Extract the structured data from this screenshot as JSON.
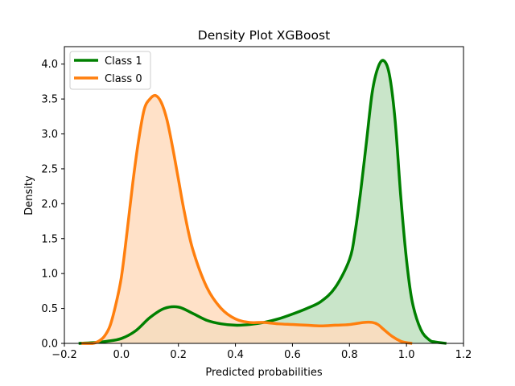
{
  "chart_data": {
    "type": "area",
    "title": "Density Plot XGBoost",
    "xlabel": "Predicted probabilities",
    "ylabel": "Density",
    "xlim": [
      -0.2,
      1.2
    ],
    "ylim": [
      0,
      4.25
    ],
    "xticks": [
      -0.2,
      0.0,
      0.2,
      0.4,
      0.6,
      0.8,
      1.0,
      1.2
    ],
    "xtick_labels": [
      "−0.2",
      "0.0",
      "0.2",
      "0.4",
      "0.6",
      "0.8",
      "1.0",
      "1.2"
    ],
    "yticks": [
      0.0,
      0.5,
      1.0,
      1.5,
      2.0,
      2.5,
      3.0,
      3.5,
      4.0
    ],
    "ytick_labels": [
      "0.0",
      "0.5",
      "1.0",
      "1.5",
      "2.0",
      "2.5",
      "3.0",
      "3.5",
      "4.0"
    ],
    "grid": false,
    "legend_position": "top-left",
    "series": [
      {
        "name": "Class 1",
        "color": "#008000",
        "fill": "#bfe0bf",
        "x": [
          -0.15,
          -0.1,
          -0.05,
          0.0,
          0.05,
          0.1,
          0.15,
          0.2,
          0.25,
          0.3,
          0.35,
          0.4,
          0.45,
          0.5,
          0.55,
          0.6,
          0.65,
          0.7,
          0.75,
          0.8,
          0.82,
          0.84,
          0.86,
          0.88,
          0.9,
          0.92,
          0.94,
          0.96,
          0.98,
          1.0,
          1.02,
          1.05,
          1.08,
          1.1,
          1.14
        ],
        "y": [
          0.0,
          0.01,
          0.03,
          0.07,
          0.18,
          0.37,
          0.5,
          0.52,
          0.43,
          0.33,
          0.28,
          0.26,
          0.27,
          0.3,
          0.35,
          0.42,
          0.5,
          0.6,
          0.8,
          1.2,
          1.6,
          2.2,
          2.9,
          3.6,
          3.95,
          4.05,
          3.85,
          3.2,
          2.1,
          1.2,
          0.6,
          0.2,
          0.05,
          0.02,
          0.0
        ]
      },
      {
        "name": "Class 0",
        "color": "#ff7f0e",
        "fill": "#ffdcbe",
        "x": [
          -0.14,
          -0.1,
          -0.08,
          -0.06,
          -0.04,
          -0.02,
          0.0,
          0.02,
          0.04,
          0.06,
          0.08,
          0.1,
          0.12,
          0.14,
          0.16,
          0.18,
          0.2,
          0.22,
          0.25,
          0.3,
          0.35,
          0.4,
          0.45,
          0.5,
          0.55,
          0.6,
          0.65,
          0.7,
          0.75,
          0.8,
          0.85,
          0.88,
          0.9,
          0.92,
          0.95,
          0.98,
          1.0,
          1.02
        ],
        "y": [
          0.0,
          0.0,
          0.03,
          0.1,
          0.25,
          0.55,
          0.95,
          1.6,
          2.3,
          2.9,
          3.35,
          3.5,
          3.55,
          3.45,
          3.2,
          2.8,
          2.35,
          1.9,
          1.35,
          0.8,
          0.5,
          0.35,
          0.3,
          0.3,
          0.28,
          0.27,
          0.26,
          0.25,
          0.26,
          0.27,
          0.3,
          0.3,
          0.27,
          0.2,
          0.1,
          0.03,
          0.01,
          0.0
        ]
      }
    ]
  }
}
